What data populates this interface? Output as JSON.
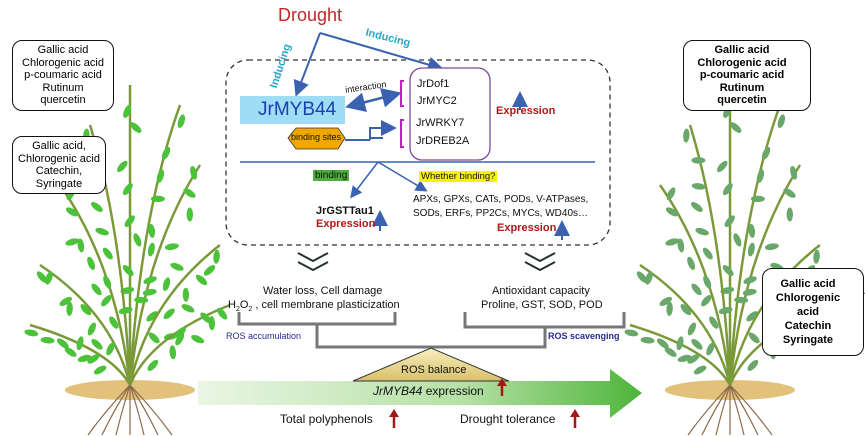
{
  "title": "Drought",
  "inducing_left": "Inducing",
  "inducing_right": "Inducing",
  "main_gene": "JrMYB44",
  "interaction_label": "interaction",
  "binding_sites_label": "binding sites",
  "partners": [
    "JrDof1",
    "JrMYC2",
    "JrWRKY7",
    "JrDREB2A"
  ],
  "expression_label": "Expression",
  "binding_label": "binding",
  "whether_binding_label": "Whether binding?",
  "target_gene": "JrGSTTau1",
  "candidate_targets": [
    "APXs, GPXs, CATs, PODs, V-ATPases,",
    "SODs, ERFs, PP2Cs, MYCs, WD40s…"
  ],
  "left_effects": {
    "line1": "Water loss,   Cell damage",
    "line2_prefix": "H",
    "line2_sub1": "2",
    "line2_mid": "O",
    "line2_sub2": "2",
    "line2_suffix": " , cell membrane plasticization"
  },
  "right_effects": {
    "line1": "Antioxidant capacity",
    "line2": "Proline,  GST, SOD, POD"
  },
  "ros_accumulation": "ROS accumulation",
  "ros_scavenging": "ROS scavenging",
  "ros_balance": "ROS balance",
  "expression_bar": {
    "gene": "JrMYB44",
    "text": " expression"
  },
  "total_polyphenols": "Total polyphenols",
  "drought_tolerance": "Drought tolerance",
  "left_callout_top": [
    "Gallic acid",
    "Chlorogenic acid",
    "p-coumaric acid",
    "Rutinum",
    "quercetin"
  ],
  "left_callout_bottom": [
    "Gallic acid,",
    "Chlorogenic acid",
    "Catechin,",
    "Syringate"
  ],
  "right_callout_top": [
    "Gallic acid",
    "Chlorogenic acid",
    "p-coumaric acid",
    "Rutinum",
    "quercetin"
  ],
  "right_callout_bottom": [
    "Gallic acid",
    "Chlorogenic acid",
    "Catechin",
    "Syringate"
  ],
  "colors": {
    "drought": "#c0282a",
    "inducing": "#2aa6c8",
    "arrow_blue": "#3a62b0",
    "gene_box": "#9fdcf5",
    "gene_text": "#1a3fb0",
    "binding_sites": "#f0a800",
    "binding": "#4caf3a",
    "whether": "#f5f500",
    "expression": "#a01818",
    "ros_text": "#2a2a90",
    "leaf": "#4cc23a",
    "bar_green": "#5cbf4a"
  }
}
